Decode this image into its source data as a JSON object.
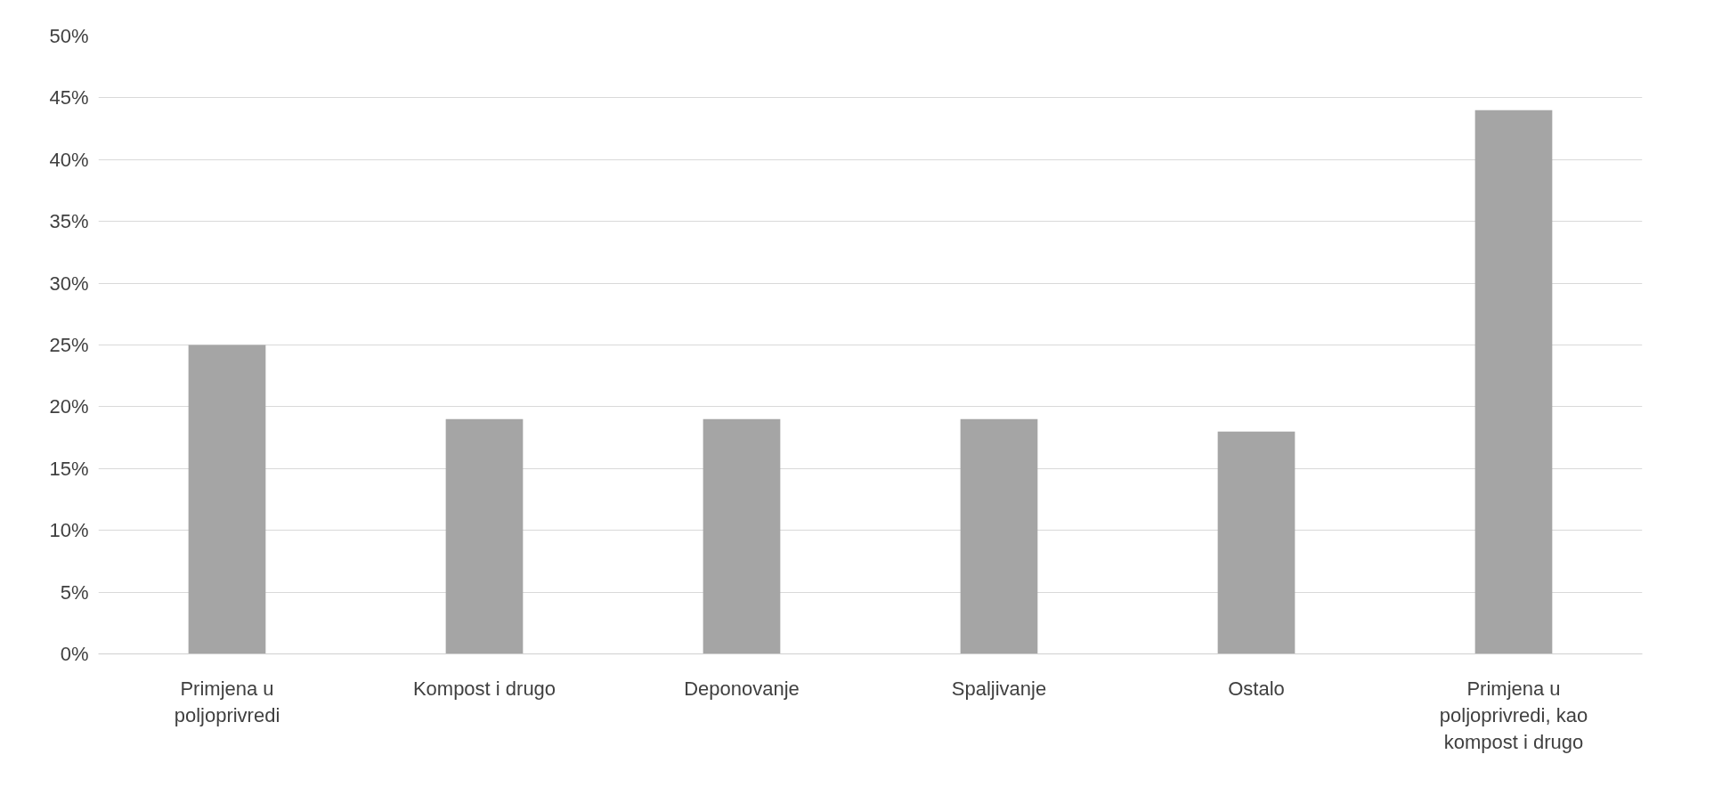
{
  "chart_data": {
    "type": "bar",
    "categories": [
      "Primjena u poljoprivredi",
      "Kompost i drugo",
      "Deponovanje",
      "Spaljivanje",
      "Ostalo",
      "Primjena u poljoprivredi, kao kompost i drugo"
    ],
    "values": [
      25,
      19,
      19,
      19,
      18,
      44
    ],
    "color": "#a5a5a5",
    "ylim": [
      0,
      50
    ],
    "yticks": [
      {
        "value": 0,
        "label": "0%"
      },
      {
        "value": 5,
        "label": "5%"
      },
      {
        "value": 10,
        "label": "10%"
      },
      {
        "value": 15,
        "label": "15%"
      },
      {
        "value": 20,
        "label": "20%"
      },
      {
        "value": 25,
        "label": "25%"
      },
      {
        "value": 30,
        "label": "30%"
      },
      {
        "value": 35,
        "label": "35%"
      },
      {
        "value": 40,
        "label": "40%"
      },
      {
        "value": 45,
        "label": "45%"
      },
      {
        "value": 50,
        "label": "50%"
      }
    ],
    "grid": "y"
  }
}
